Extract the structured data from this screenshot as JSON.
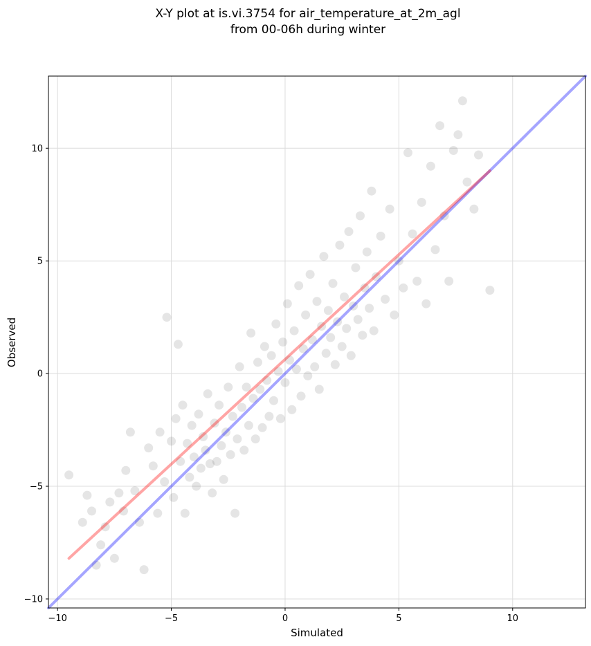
{
  "chart_data": {
    "type": "scatter",
    "title": [
      "X-Y plot at is.vi.3754 for air_temperature_at_2m_agl",
      "from 00-06h during winter"
    ],
    "xlabel": "Simulated",
    "ylabel": "Observed",
    "xlim": [
      -10.4,
      13.2
    ],
    "ylim": [
      -10.4,
      13.2
    ],
    "xticks": [
      -10,
      -5,
      0,
      5,
      10
    ],
    "yticks": [
      -10,
      -5,
      0,
      5,
      10
    ],
    "xtick_labels": [
      "−10",
      "−5",
      "0",
      "5",
      "10"
    ],
    "ytick_labels": [
      "−10",
      "−5",
      "0",
      "5",
      "10"
    ],
    "grid": true,
    "marker_color": "#000000",
    "marker_opacity": 0.1,
    "identity_line": {
      "color": "#0000ff",
      "from": [
        -10.4,
        -10.4
      ],
      "to": [
        13.2,
        13.2
      ]
    },
    "fit_line": {
      "color": "#ff0000",
      "from": [
        -9.5,
        -8.2
      ],
      "to": [
        9.0,
        9.0
      ]
    },
    "points": [
      [
        -9.5,
        -4.5
      ],
      [
        -8.9,
        -6.6
      ],
      [
        -8.7,
        -5.4
      ],
      [
        -8.5,
        -6.1
      ],
      [
        -8.3,
        -8.5
      ],
      [
        -8.1,
        -7.6
      ],
      [
        -7.9,
        -6.8
      ],
      [
        -7.7,
        -5.7
      ],
      [
        -7.5,
        -8.2
      ],
      [
        -7.3,
        -5.3
      ],
      [
        -7.1,
        -6.1
      ],
      [
        -7.0,
        -4.3
      ],
      [
        -6.8,
        -2.6
      ],
      [
        -6.6,
        -5.2
      ],
      [
        -6.4,
        -6.6
      ],
      [
        -6.2,
        -8.7
      ],
      [
        -6.0,
        -3.3
      ],
      [
        -5.8,
        -4.1
      ],
      [
        -5.6,
        -6.2
      ],
      [
        -5.5,
        -2.6
      ],
      [
        -5.3,
        -4.8
      ],
      [
        -5.2,
        2.5
      ],
      [
        -5.0,
        -3.0
      ],
      [
        -4.9,
        -5.5
      ],
      [
        -4.8,
        -2.0
      ],
      [
        -4.7,
        1.3
      ],
      [
        -4.6,
        -3.9
      ],
      [
        -4.5,
        -1.4
      ],
      [
        -4.4,
        -6.2
      ],
      [
        -4.3,
        -3.1
      ],
      [
        -4.2,
        -4.6
      ],
      [
        -4.1,
        -2.3
      ],
      [
        -4.0,
        -3.7
      ],
      [
        -3.9,
        -5.0
      ],
      [
        -3.8,
        -1.8
      ],
      [
        -3.7,
        -4.2
      ],
      [
        -3.6,
        -2.8
      ],
      [
        -3.5,
        -3.4
      ],
      [
        -3.4,
        -0.9
      ],
      [
        -3.3,
        -4.0
      ],
      [
        -3.2,
        -5.3
      ],
      [
        -3.1,
        -2.2
      ],
      [
        -3.0,
        -3.9
      ],
      [
        -2.9,
        -1.4
      ],
      [
        -2.8,
        -3.2
      ],
      [
        -2.7,
        -4.7
      ],
      [
        -2.6,
        -2.6
      ],
      [
        -2.5,
        -0.6
      ],
      [
        -2.4,
        -3.6
      ],
      [
        -2.3,
        -1.9
      ],
      [
        -2.2,
        -6.2
      ],
      [
        -2.1,
        -2.9
      ],
      [
        -2.0,
        0.3
      ],
      [
        -1.9,
        -1.5
      ],
      [
        -1.8,
        -3.4
      ],
      [
        -1.7,
        -0.6
      ],
      [
        -1.6,
        -2.3
      ],
      [
        -1.5,
        1.8
      ],
      [
        -1.4,
        -1.1
      ],
      [
        -1.3,
        -2.9
      ],
      [
        -1.2,
        0.5
      ],
      [
        -1.1,
        -0.7
      ],
      [
        -1.0,
        -2.4
      ],
      [
        -0.9,
        1.2
      ],
      [
        -0.8,
        -0.3
      ],
      [
        -0.7,
        -1.9
      ],
      [
        -0.6,
        0.8
      ],
      [
        -0.5,
        -1.2
      ],
      [
        -0.4,
        2.2
      ],
      [
        -0.3,
        0.1
      ],
      [
        -0.2,
        -2.0
      ],
      [
        -0.1,
        1.4
      ],
      [
        0.0,
        -0.4
      ],
      [
        0.1,
        3.1
      ],
      [
        0.2,
        0.6
      ],
      [
        0.3,
        -1.6
      ],
      [
        0.4,
        1.9
      ],
      [
        0.5,
        0.2
      ],
      [
        0.6,
        3.9
      ],
      [
        0.7,
        -1.0
      ],
      [
        0.8,
        1.1
      ],
      [
        0.9,
        2.6
      ],
      [
        1.0,
        -0.1
      ],
      [
        1.1,
        4.4
      ],
      [
        1.2,
        1.5
      ],
      [
        1.3,
        0.3
      ],
      [
        1.4,
        3.2
      ],
      [
        1.5,
        -0.7
      ],
      [
        1.6,
        2.1
      ],
      [
        1.7,
        5.2
      ],
      [
        1.8,
        0.9
      ],
      [
        1.9,
        2.8
      ],
      [
        2.0,
        1.6
      ],
      [
        2.1,
        4.0
      ],
      [
        2.2,
        0.4
      ],
      [
        2.3,
        2.3
      ],
      [
        2.4,
        5.7
      ],
      [
        2.5,
        1.2
      ],
      [
        2.6,
        3.4
      ],
      [
        2.7,
        2.0
      ],
      [
        2.8,
        6.3
      ],
      [
        2.9,
        0.8
      ],
      [
        3.0,
        3.0
      ],
      [
        3.1,
        4.7
      ],
      [
        3.2,
        2.4
      ],
      [
        3.3,
        7.0
      ],
      [
        3.4,
        1.7
      ],
      [
        3.5,
        3.8
      ],
      [
        3.6,
        5.4
      ],
      [
        3.7,
        2.9
      ],
      [
        3.8,
        8.1
      ],
      [
        3.9,
        1.9
      ],
      [
        4.0,
        4.3
      ],
      [
        4.2,
        6.1
      ],
      [
        4.4,
        3.3
      ],
      [
        4.6,
        7.3
      ],
      [
        4.8,
        2.6
      ],
      [
        5.0,
        5.0
      ],
      [
        5.2,
        3.8
      ],
      [
        5.4,
        9.8
      ],
      [
        5.6,
        6.2
      ],
      [
        5.8,
        4.1
      ],
      [
        6.0,
        7.6
      ],
      [
        6.2,
        3.1
      ],
      [
        6.4,
        9.2
      ],
      [
        6.6,
        5.5
      ],
      [
        6.8,
        11.0
      ],
      [
        7.0,
        7.0
      ],
      [
        7.2,
        4.1
      ],
      [
        7.4,
        9.9
      ],
      [
        7.6,
        10.6
      ],
      [
        7.8,
        12.1
      ],
      [
        8.0,
        8.5
      ],
      [
        8.3,
        7.3
      ],
      [
        8.5,
        9.7
      ],
      [
        9.0,
        3.7
      ]
    ]
  }
}
